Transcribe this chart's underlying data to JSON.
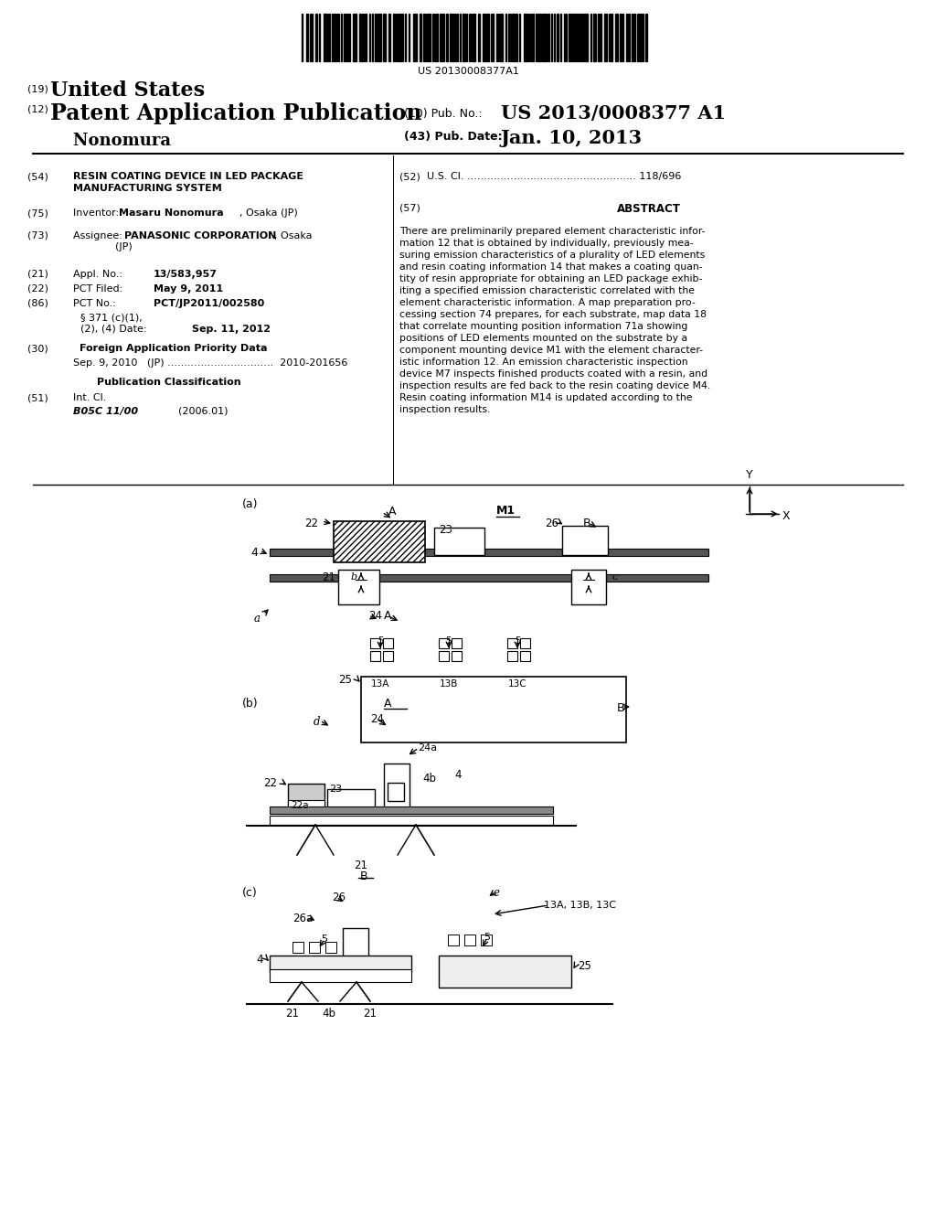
{
  "background_color": "#ffffff",
  "barcode_text": "US 20130008377A1",
  "title_19": "(19) United States",
  "title_12": "(12) Patent Application Publication",
  "pub_no_label": "(10) Pub. No.:",
  "pub_no": "US 2013/0008377 A1",
  "inventor_name": "Nonomura",
  "pub_date_label": "(43) Pub. Date:",
  "pub_date": "Jan. 10, 2013",
  "field54_label": "(54)",
  "field52_label": "(52)",
  "field75_label": "(75)",
  "field57_label": "(57)",
  "field57_title": "ABSTRACT",
  "field73_label": "(73)",
  "field21_label": "(21)",
  "field22_label": "(22)",
  "field86_label": "(86)",
  "field30_label": "(30)",
  "field51_label": "(51)",
  "abstract_lines": [
    "There are preliminarily prepared element characteristic infor-",
    "mation 12 that is obtained by individually, previously mea-",
    "suring emission characteristics of a plurality of LED elements",
    "and resin coating information 14 that makes a coating quan-",
    "tity of resin appropriate for obtaining an LED package exhib-",
    "iting a specified emission characteristic correlated with the",
    "element characteristic information. A map preparation pro-",
    "cessing section 74 prepares, for each substrate, map data 18",
    "that correlate mounting position information 71a showing",
    "positions of LED elements mounted on the substrate by a",
    "component mounting device M1 with the element character-",
    "istic information 12. An emission characteristic inspection",
    "device M7 inspects finished products coated with a resin, and",
    "inspection results are fed back to the resin coating device M4.",
    "Resin coating information M14 is updated according to the",
    "inspection results."
  ]
}
